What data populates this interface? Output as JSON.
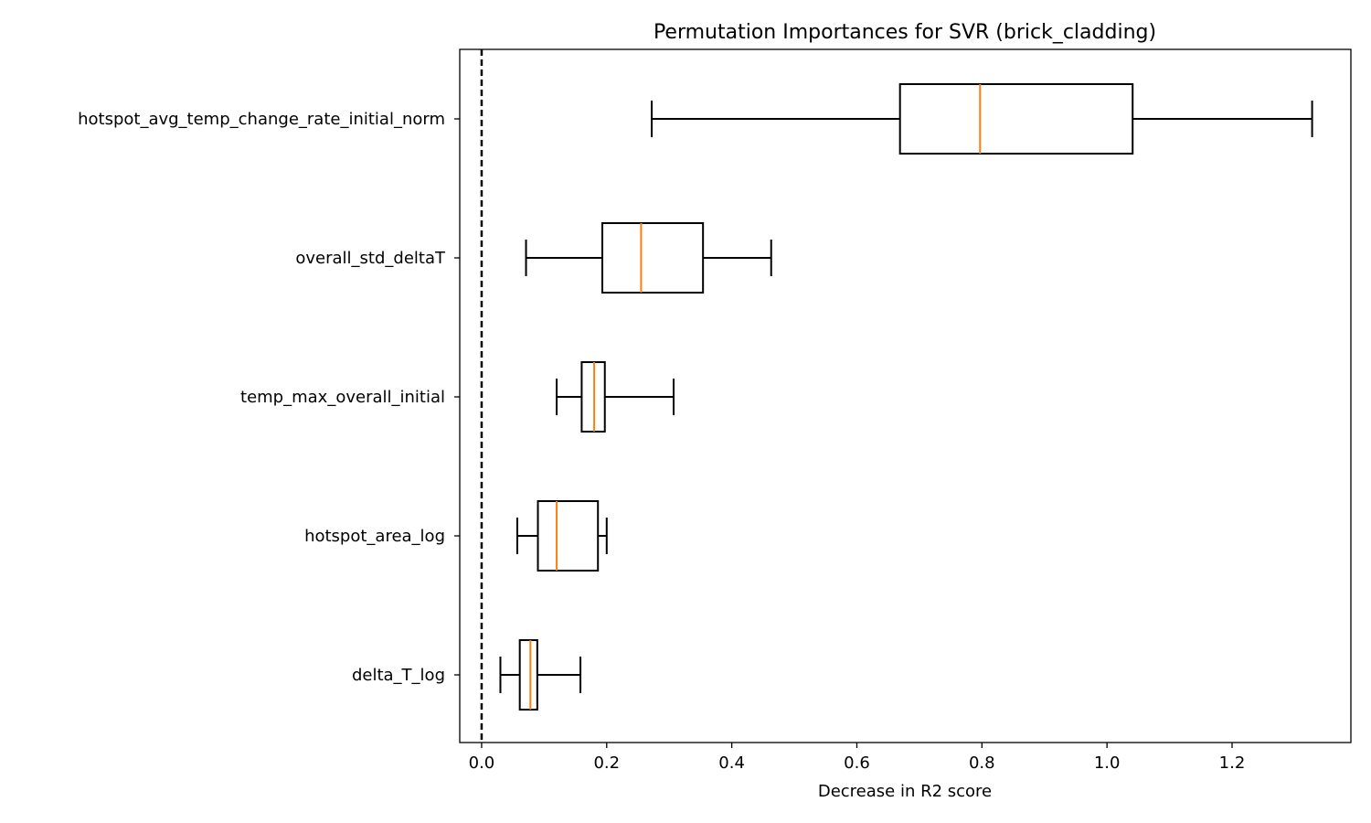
{
  "chart_data": {
    "type": "boxplot",
    "orientation": "horizontal",
    "title": "Permutation Importances for SVR (brick_cladding)",
    "xlabel": "Decrease in R2 score",
    "ylabel": "",
    "xlim": [
      -0.035,
      1.39
    ],
    "xticks": [
      "0.0",
      "0.2",
      "0.4",
      "0.6",
      "0.8",
      "1.0",
      "1.2"
    ],
    "reference_line": {
      "x": 0.0,
      "style": "dashed",
      "color": "#000000"
    },
    "grid": false,
    "colors": {
      "box": "#000000",
      "median": "#ff7f0e"
    },
    "categories": [
      "hotspot_avg_temp_change_rate_initial_norm",
      "overall_std_deltaT",
      "temp_max_overall_initial",
      "hotspot_area_log",
      "delta_T_log"
    ],
    "boxes": [
      {
        "label": "hotspot_avg_temp_change_rate_initial_norm",
        "whisker_low": 0.272,
        "q1": 0.669,
        "median": 0.797,
        "q3": 1.041,
        "whisker_high": 1.328
      },
      {
        "label": "overall_std_deltaT",
        "whisker_low": 0.071,
        "q1": 0.193,
        "median": 0.255,
        "q3": 0.354,
        "whisker_high": 0.463
      },
      {
        "label": "temp_max_overall_initial",
        "whisker_low": 0.12,
        "q1": 0.16,
        "median": 0.18,
        "q3": 0.197,
        "whisker_high": 0.307
      },
      {
        "label": "hotspot_area_log",
        "whisker_low": 0.057,
        "q1": 0.09,
        "median": 0.12,
        "q3": 0.186,
        "whisker_high": 0.2
      },
      {
        "label": "delta_T_log",
        "whisker_low": 0.03,
        "q1": 0.061,
        "median": 0.078,
        "q3": 0.089,
        "whisker_high": 0.158
      }
    ]
  }
}
